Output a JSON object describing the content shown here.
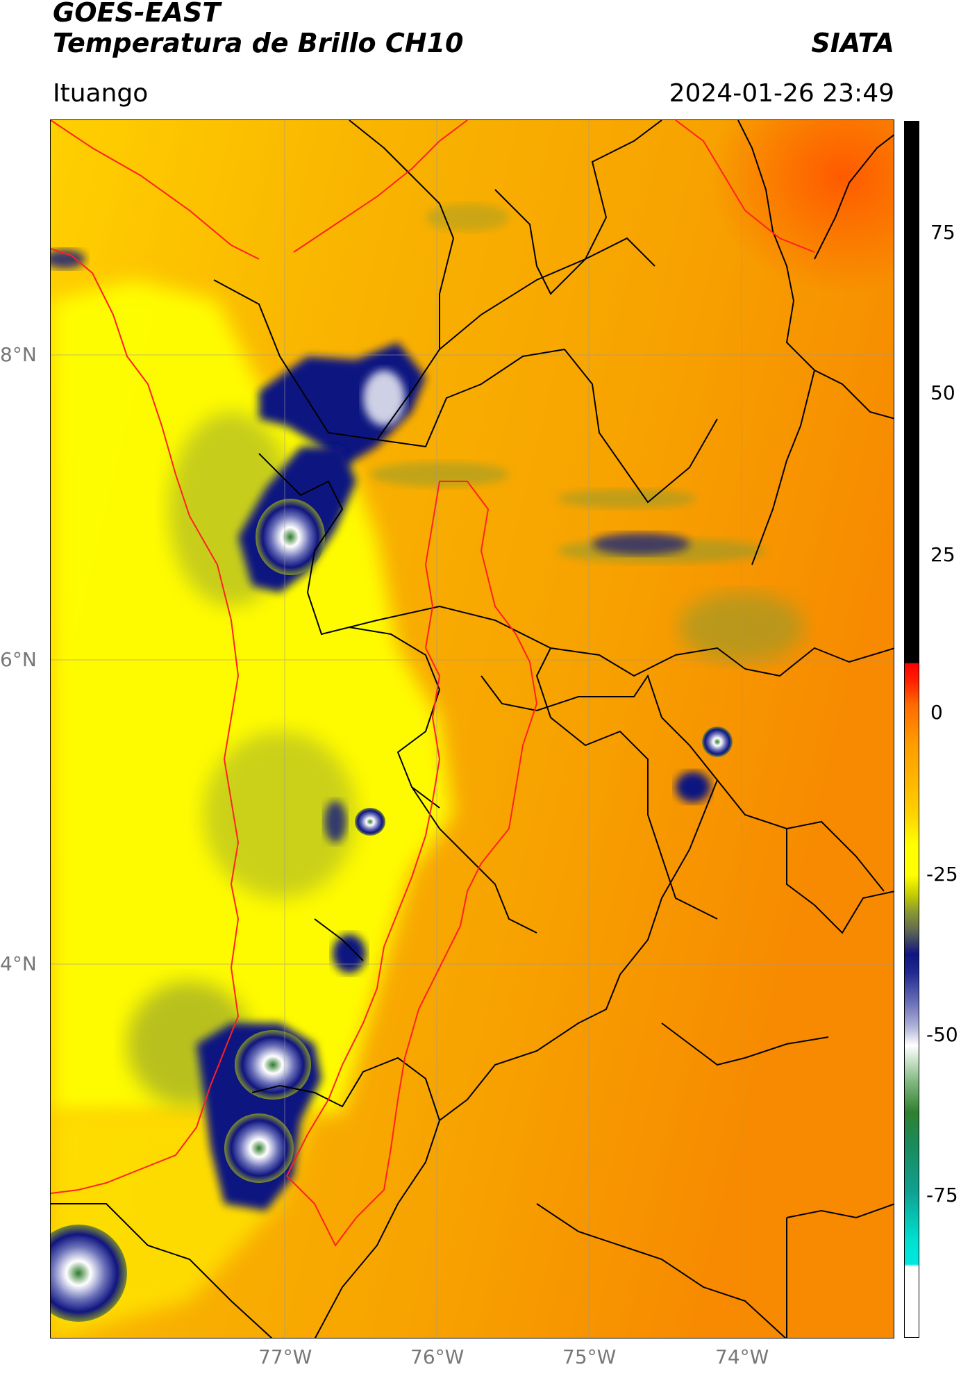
{
  "header": {
    "satellite": "GOES-EAST",
    "product": "Temperatura de Brillo CH10",
    "agency": "SIATA",
    "region": "Ituango",
    "datetime": "2024-01-26 23:49"
  },
  "map": {
    "lat_ticks": [
      "8°N",
      "6°N",
      "4°N"
    ],
    "lon_ticks": [
      "77°W",
      "76°W",
      "75°W",
      "74°W"
    ],
    "gridlines": true
  },
  "colorbar": {
    "ticks": [
      "75",
      "50",
      "25",
      "0",
      "-25",
      "-50",
      "-75"
    ],
    "range": [
      -93,
      90
    ],
    "colors": {
      "warm_fill": "#f8a800",
      "hot": "#ff6600",
      "cold_yellow": "#ffff00",
      "olive": "#8a9a30",
      "navy": "#101580",
      "white": "#ffffff",
      "green": "#308030",
      "cyan": "#00e0d0",
      "black": "#000000",
      "red": "#ff0000"
    }
  }
}
